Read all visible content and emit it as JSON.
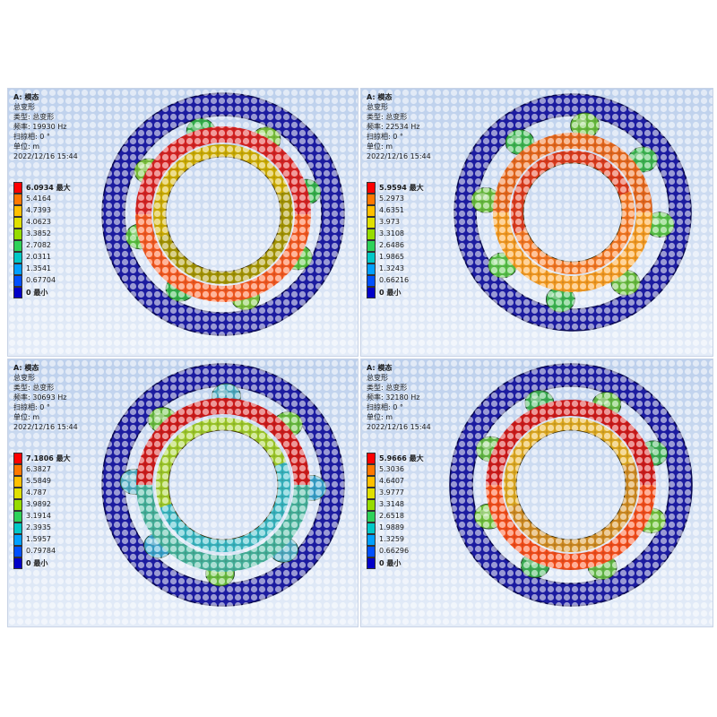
{
  "panels": [
    {
      "info": [
        "A: 模态",
        "总变形",
        "类型: 总变形",
        "频率: 19930 Hz",
        "扫掠相: 0 °",
        "单位: m",
        "2022/12/16 15:44"
      ],
      "legend": [
        "6.0934 最大",
        "5.4164",
        "4.7393",
        "4.0623",
        "3.3852",
        "2.7082",
        "2.0311",
        "1.3541",
        "0.67704",
        "0 最小"
      ],
      "mode": 0
    },
    {
      "info": [
        "A: 模态",
        "总变形",
        "类型: 总变形",
        "频率: 22534 Hz",
        "扫掠相: 0 °",
        "单位: m",
        "2022/12/16 15:44"
      ],
      "legend": [
        "5.9594 最大",
        "5.2973",
        "4.6351",
        "3.973",
        "3.3108",
        "2.6486",
        "1.9865",
        "1.3243",
        "0.66216",
        "0 最小"
      ],
      "mode": 1
    },
    {
      "info": [
        "A: 模态",
        "总变形",
        "类型: 总变形",
        "频率: 30693 Hz",
        "扫掠相: 0 °",
        "单位: m",
        "2022/12/16 15:44"
      ],
      "legend": [
        "7.1806 最大",
        "6.3827",
        "5.5849",
        "4.787",
        "3.9892",
        "3.1914",
        "2.3935",
        "1.5957",
        "0.79784",
        "0 最小"
      ],
      "mode": 2
    },
    {
      "info": [
        "A: 模态",
        "总变形",
        "类型: 总变形",
        "频率: 32180 Hz",
        "扫掠相: 0 °",
        "单位: m",
        "2022/12/16 15:44"
      ],
      "legend": [
        "5.9666 最大",
        "5.3036",
        "4.6407",
        "3.9777",
        "3.3148",
        "2.6518",
        "1.9889",
        "1.3259",
        "0.66296",
        "0 最小"
      ],
      "mode": 3
    }
  ],
  "legend_colors": [
    "#ff0000",
    "#ff7800",
    "#ffc000",
    "#e0e000",
    "#96dc00",
    "#2ed25a",
    "#00c8c8",
    "#00a0ff",
    "#0050ff",
    "#0000c8"
  ]
}
